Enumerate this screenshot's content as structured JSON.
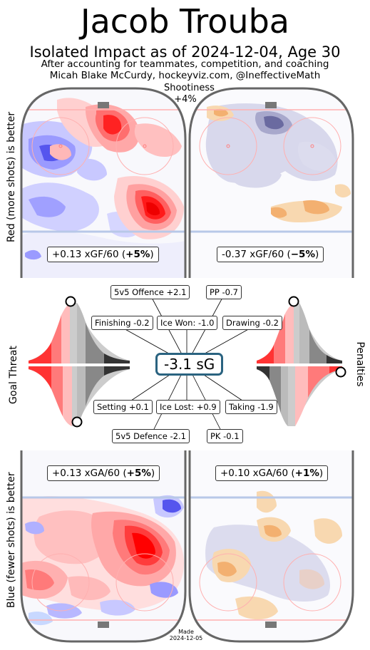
{
  "title": "Jacob Trouba",
  "subtitle": "Isolated Impact as of 2024-12-04, Age 30",
  "credit_line1": "After accounting for teammates, competition, and coaching",
  "credit_line2": "Micah Blake McCurdy, hockeyviz.com, @IneffectiveMath",
  "shootiness_label": "Shootiness",
  "shootiness_value": "+4%",
  "left_axis_top": "Red (more shots) is better",
  "left_axis_bottom": "Blue (fewer shots) is better",
  "goal_threat_label": "Goal Threat",
  "penalties_label": "Penalties",
  "made_line1": "Made",
  "made_line2": "2024-12-05",
  "colors": {
    "better_red": "#ff0000",
    "worse_blue": "#3333ff",
    "pp_orange": "#f5a623",
    "pk_purple": "#7a7aa8",
    "sg_border": "#2a6380"
  },
  "chart_data": {
    "type": "table",
    "offence_5v5": {
      "xg_per60": "+0.13",
      "pct": "+5%",
      "label_prefix": "+0.13 xGF/60 (",
      "label_suffix": ")"
    },
    "powerplay": {
      "xg_per60": "-0.37",
      "pct": "−5%",
      "label_prefix": "-0.37 xGF/60 (",
      "label_suffix": ")"
    },
    "defence_5v5": {
      "xg_per60": "+0.13",
      "pct": "+5%",
      "label_prefix": "+0.13 xGA/60 (",
      "label_suffix": ")"
    },
    "penalty_kill": {
      "xg_per60": "+0.10",
      "pct": "+1%",
      "label_prefix": "+0.10 xGA/60 (",
      "label_suffix": ")"
    },
    "total_sg": "-3.1 sG",
    "components": {
      "offence_5v5": "5v5 Offence +2.1",
      "pp": "PP -0.7",
      "finishing": "Finishing -0.2",
      "ice_won": "Ice Won: -1.0",
      "drawing": "Drawing -0.2",
      "setting": "Setting +0.1",
      "ice_lost": "Ice Lost: +0.9",
      "taking": "Taking -1.9",
      "defence_5v5": "5v5 Defence -2.1",
      "pk": "PK -0.1"
    },
    "goal_threat_percentile": {
      "offence": 0.56,
      "defence": 0.47
    },
    "penalties_percentile": {
      "drawing": 0.42,
      "taking": 0.98
    }
  }
}
